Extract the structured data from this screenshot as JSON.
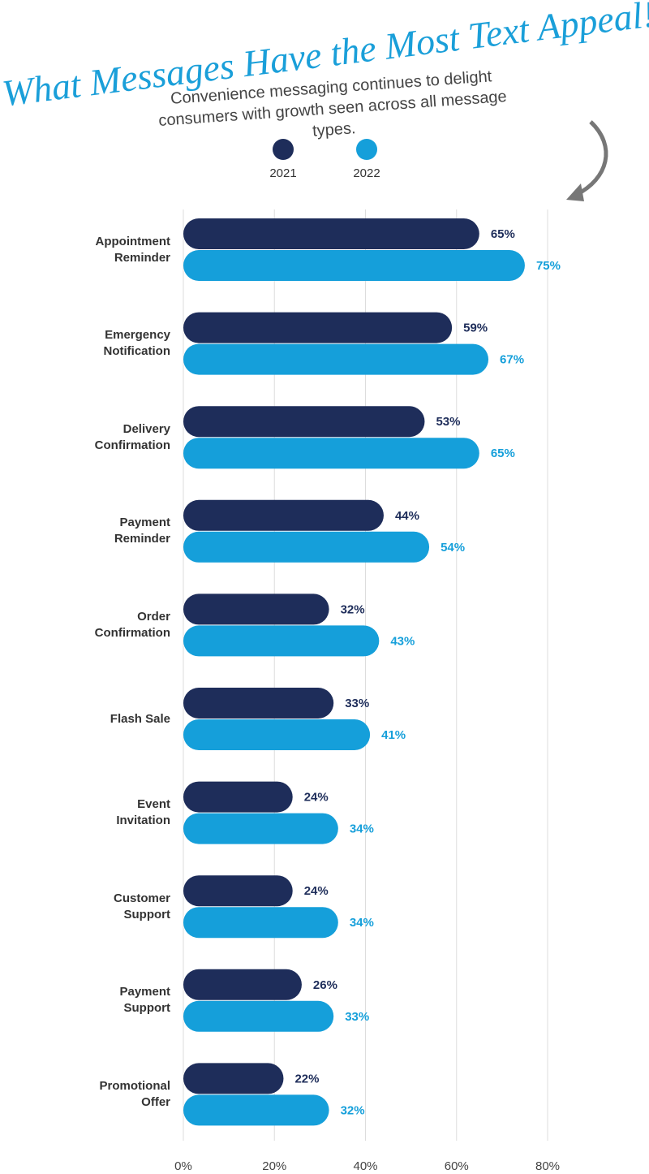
{
  "chart_data": {
    "type": "bar",
    "title": "What Messages Have the Most Text Appeal!?",
    "subtitle": "Convenience messaging continues to delight consumers with growth seen across all message types.",
    "categories": [
      "Appointment Reminder",
      "Emergency Notification",
      "Delivery Confirmation",
      "Payment Reminder",
      "Order Confirmation",
      "Flash Sale",
      "Event Invitation",
      "Customer Support",
      "Payment Support",
      "Promotional Offer"
    ],
    "series": [
      {
        "name": "2021",
        "color": "#1e2d5a",
        "values": [
          65,
          59,
          53,
          44,
          32,
          33,
          24,
          24,
          26,
          22
        ],
        "value_labels": [
          "65%",
          "59%",
          "53%",
          "44%",
          "32%",
          "33%",
          "24%",
          "24%",
          "26%",
          "22%"
        ]
      },
      {
        "name": "2022",
        "color": "#159fda",
        "values": [
          75,
          67,
          65,
          54,
          43,
          41,
          34,
          34,
          33,
          32
        ],
        "value_labels": [
          "75%",
          "67%",
          "65%",
          "54%",
          "43%",
          "41%",
          "34%",
          "34%",
          "33%",
          "32%"
        ]
      }
    ],
    "xlim": [
      0,
      80
    ],
    "xticks": [
      {
        "value": 0,
        "label": "0%"
      },
      {
        "value": 20,
        "label": "20%"
      },
      {
        "value": 40,
        "label": "40%"
      },
      {
        "value": 60,
        "label": "60%"
      },
      {
        "value": 80,
        "label": "80%"
      }
    ],
    "grid": true
  }
}
